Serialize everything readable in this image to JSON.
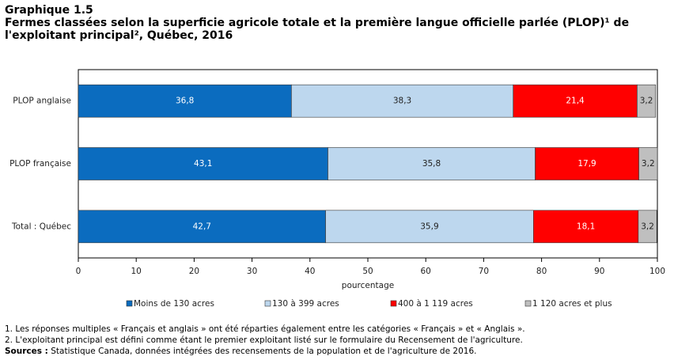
{
  "chart_data": {
    "type": "stacked-barh",
    "title": "Graphique 1.5",
    "subtitle": "Fermes classées selon la superficie agricole totale et la première langue officielle parlée (PLOP)¹ de l'exploitant principal², Québec, 2016",
    "categories": [
      "PLOP anglaise",
      "PLOP française",
      "Total : Québec"
    ],
    "series": [
      {
        "name": "Moins de 130 acres",
        "color": "#0b6cbf",
        "values": [
          36.8,
          43.1,
          42.7
        ],
        "value_labels": [
          "36,8",
          "43,1",
          "42,7"
        ]
      },
      {
        "name": "130 à 399 acres",
        "color": "#bdd7ee",
        "values": [
          38.3,
          35.8,
          35.9
        ],
        "value_labels": [
          "38,3",
          "35,8",
          "35,9"
        ]
      },
      {
        "name": "400 à 1 119 acres",
        "color": "#ff0000",
        "values": [
          21.4,
          17.9,
          18.1
        ],
        "value_labels": [
          "21,4",
          "17,9",
          "18,1"
        ]
      },
      {
        "name": "1 120 acres et plus",
        "color": "#bfbfbf",
        "values": [
          3.2,
          3.2,
          3.2
        ],
        "value_labels": [
          "3,2",
          "3,2",
          "3,2"
        ]
      }
    ],
    "xlim": [
      0,
      100
    ],
    "xticks": [
      0,
      10,
      20,
      30,
      40,
      50,
      60,
      70,
      80,
      90,
      100
    ],
    "xlabel": "pourcentage",
    "notes": [
      "1. Les réponses multiples « Français et anglais » ont été réparties également entre les catégories « Français » et « Anglais ».",
      "2. L'exploitant principal est défini comme étant le premier exploitant listé sur le formulaire du Recensement de l'agriculture."
    ],
    "source_label": "Sources :",
    "source": "Statistique Canada, données intégrées des recensements de la population et de l'agriculture de 2016."
  }
}
